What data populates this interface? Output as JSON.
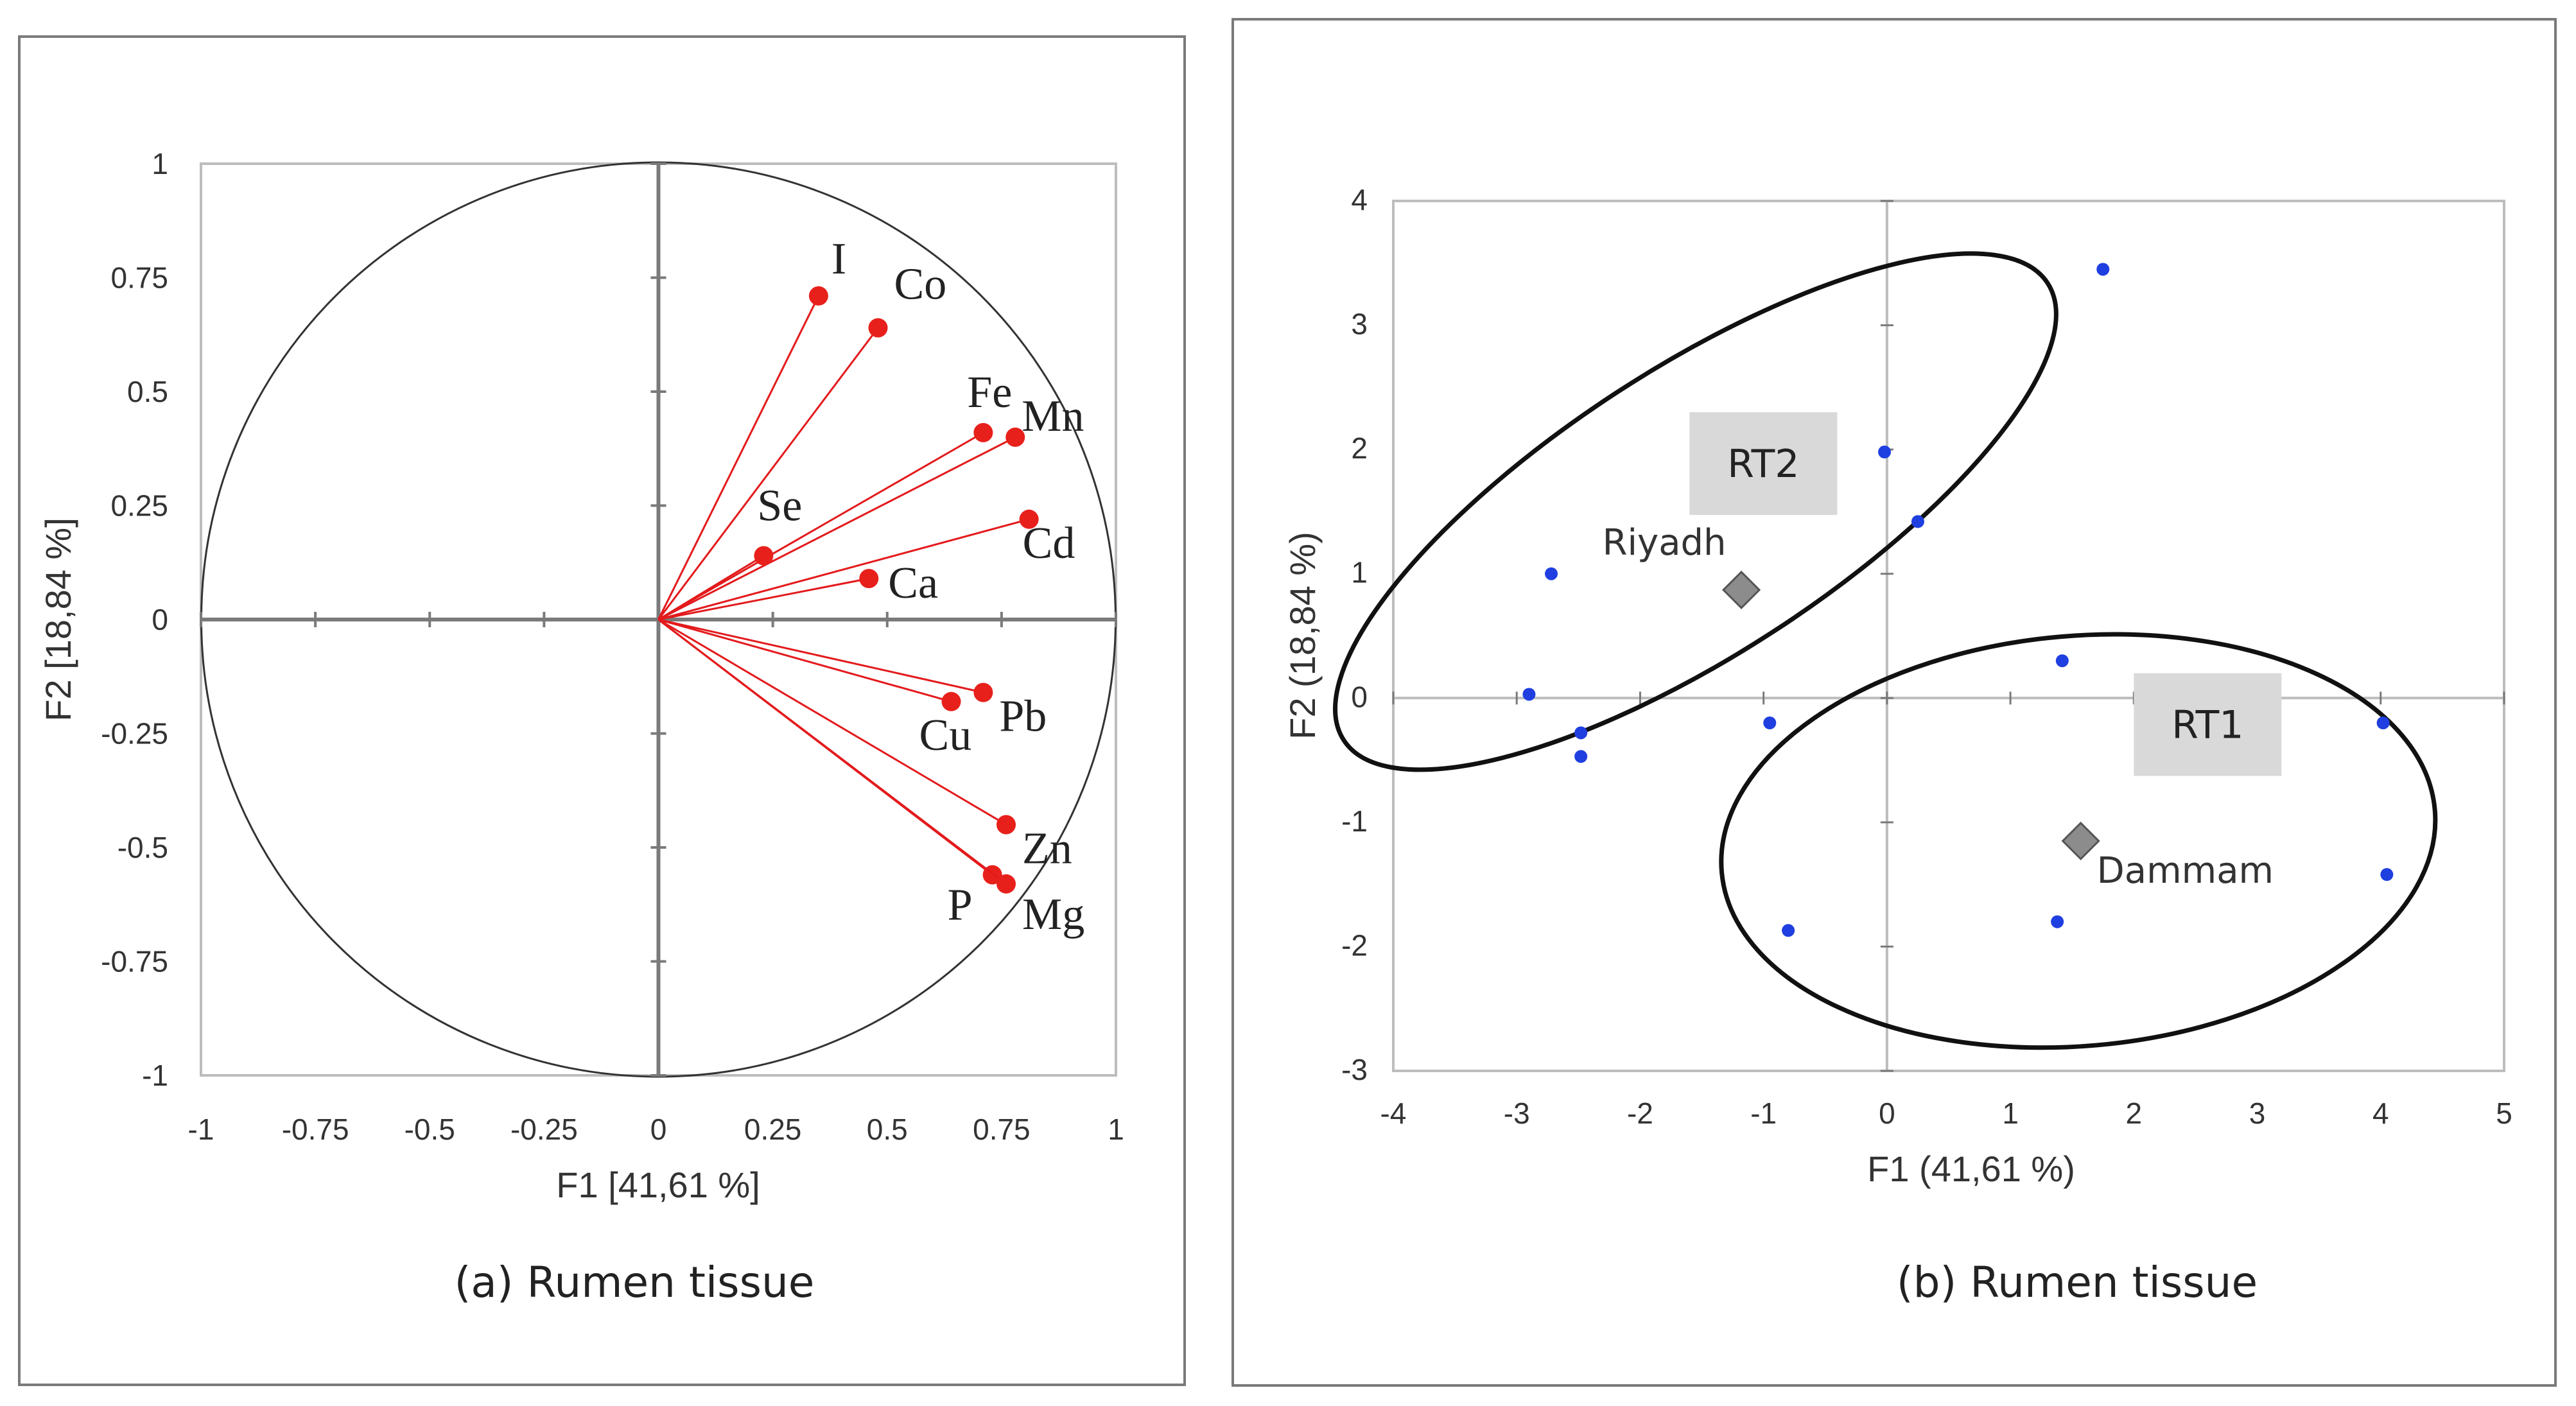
{
  "chart_data": [
    {
      "type": "scatter",
      "subtype": "correlation-circle",
      "caption": "(a) Rumen tissue",
      "xlabel": "F1 [41,61 %]",
      "ylabel": "F2 [18,84 %]",
      "xlim": [
        -1,
        1
      ],
      "ylim": [
        -1,
        1
      ],
      "xticks": [
        "-1",
        "-0.75",
        "-0.5",
        "-0.25",
        "0",
        "0.25",
        "0.5",
        "0.75",
        "1"
      ],
      "yticks": [
        "1",
        "0.75",
        "0.5",
        "0.25",
        "0",
        "-0.25",
        "-0.5",
        "-0.75",
        "-1"
      ],
      "variables": [
        {
          "name": "I",
          "x": 0.35,
          "y": 0.71
        },
        {
          "name": "Co",
          "x": 0.48,
          "y": 0.64
        },
        {
          "name": "Fe",
          "x": 0.71,
          "y": 0.41
        },
        {
          "name": "Mn",
          "x": 0.78,
          "y": 0.4
        },
        {
          "name": "Se",
          "x": 0.23,
          "y": 0.14
        },
        {
          "name": "Cd",
          "x": 0.81,
          "y": 0.22
        },
        {
          "name": "Ca",
          "x": 0.46,
          "y": 0.09
        },
        {
          "name": "Pb",
          "x": 0.71,
          "y": -0.16
        },
        {
          "name": "Cu",
          "x": 0.64,
          "y": -0.18
        },
        {
          "name": "Zn",
          "x": 0.76,
          "y": -0.45
        },
        {
          "name": "P",
          "x": 0.73,
          "y": -0.56
        },
        {
          "name": "Mg",
          "x": 0.76,
          "y": -0.58
        }
      ]
    },
    {
      "type": "scatter",
      "subtype": "observations",
      "caption": "(b) Rumen tissue",
      "xlabel": "F1 (41,61 %)",
      "ylabel": "F2 (18,84 %)",
      "xlim": [
        -4,
        5
      ],
      "ylim": [
        -3,
        4
      ],
      "xticks": [
        "-4",
        "-3",
        "-2",
        "-1",
        "0",
        "1",
        "2",
        "3",
        "4",
        "5"
      ],
      "yticks": [
        "4",
        "3",
        "2",
        "1",
        "0",
        "-1",
        "-2",
        "-3"
      ],
      "points": [
        {
          "x": 1.75,
          "y": 3.45
        },
        {
          "x": -0.02,
          "y": 1.98
        },
        {
          "x": 0.25,
          "y": 1.42
        },
        {
          "x": -2.72,
          "y": 1.0
        },
        {
          "x": -2.9,
          "y": 0.03
        },
        {
          "x": -2.48,
          "y": -0.28
        },
        {
          "x": -2.48,
          "y": -0.47
        },
        {
          "x": -0.95,
          "y": -0.2
        },
        {
          "x": 1.42,
          "y": 0.3
        },
        {
          "x": 4.02,
          "y": -0.2
        },
        {
          "x": 4.05,
          "y": -1.42
        },
        {
          "x": 1.38,
          "y": -1.8
        },
        {
          "x": -0.8,
          "y": -1.87
        }
      ],
      "centroids": [
        {
          "name": "Riyadh",
          "x": -1.18,
          "y": 0.87
        },
        {
          "name": "Dammam",
          "x": 1.57,
          "y": -1.15
        }
      ],
      "groups": [
        {
          "name": "RT2",
          "cx": -1.55,
          "cy": 1.5,
          "rx": 3.4,
          "ry": 1.15,
          "angle_deg": 33
        },
        {
          "name": "RT1",
          "cx": 1.55,
          "cy": -1.15,
          "rx": 2.9,
          "ry": 1.65,
          "angle_deg": 5
        }
      ]
    }
  ]
}
